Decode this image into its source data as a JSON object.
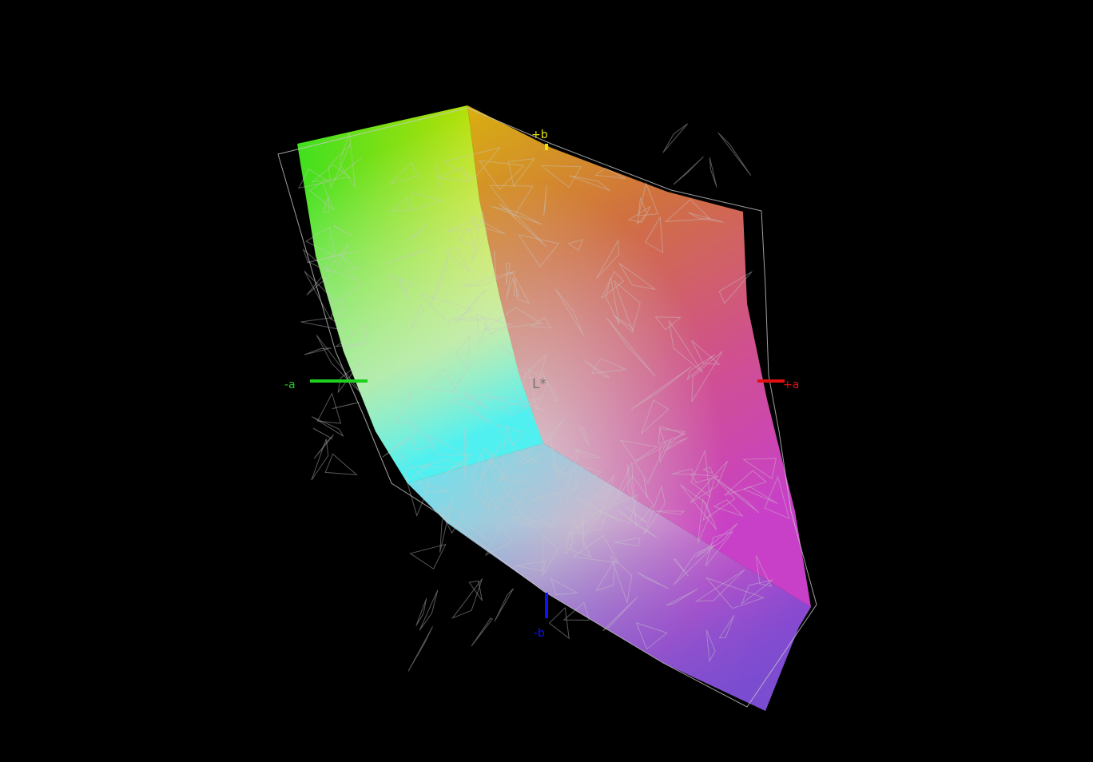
{
  "axes": {
    "plus_b": {
      "label": "+b",
      "color": "#e6e600"
    },
    "minus_b": {
      "label": "-b",
      "color": "#1010ff"
    },
    "plus_a": {
      "label": "+a",
      "color": "#e01010"
    },
    "minus_a": {
      "label": "-a",
      "color": "#20d020"
    },
    "lightness": {
      "label": "L*",
      "color": "#777777"
    }
  },
  "colors": {
    "background": "#000000",
    "wireframe": "#c8c8c8",
    "green": "#40e020",
    "yellow": "#e0e000",
    "red": "#e05030",
    "magenta": "#d040d0",
    "blue": "#7050d0",
    "cyan": "#50f0f0",
    "white": "#f0f0f0"
  }
}
